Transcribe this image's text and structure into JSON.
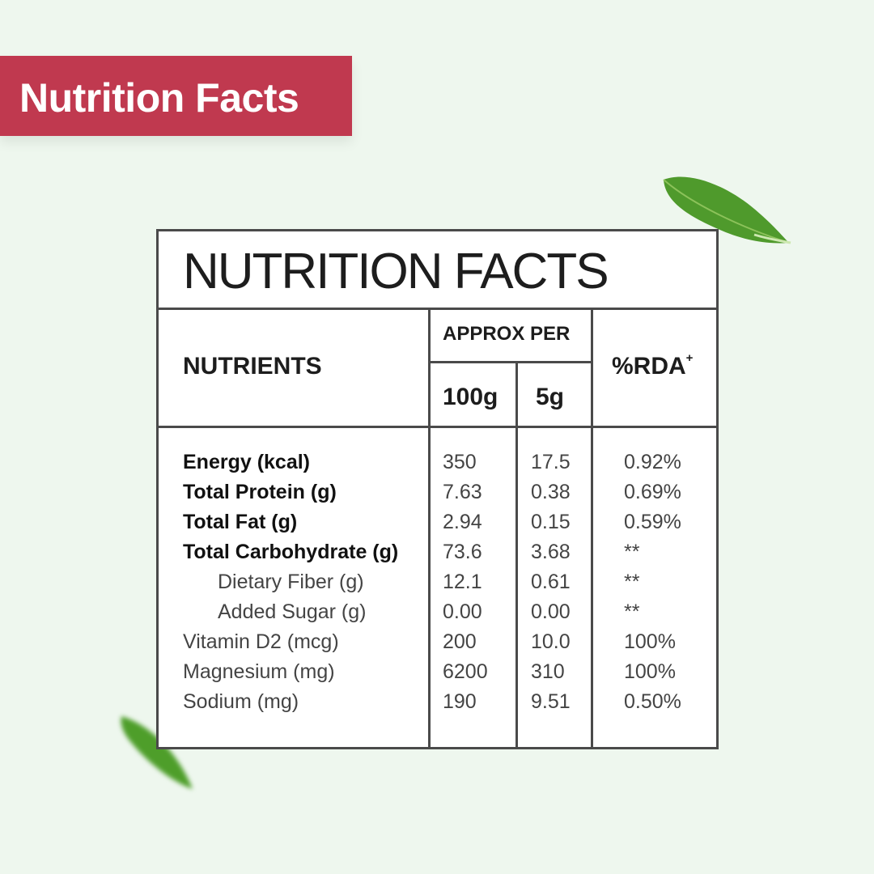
{
  "banner": {
    "title": "Nutrition Facts"
  },
  "table": {
    "title": "NUTRITION FACTS",
    "headers": {
      "nutrients": "NUTRIENTS",
      "approx_per": "APPROX PER",
      "per_100g": "100g",
      "per_5g": "5g",
      "rda": "%RDA",
      "rda_mark": "+"
    },
    "rows": [
      {
        "name": "Energy (kcal)",
        "per_100g": "350",
        "per_5g": "17.5",
        "rda": "0.92%"
      },
      {
        "name": "Total Protein (g)",
        "per_100g": "7.63",
        "per_5g": "0.38",
        "rda": "0.69%"
      },
      {
        "name": "Total Fat (g)",
        "per_100g": "2.94",
        "per_5g": "0.15",
        "rda": "0.59%"
      },
      {
        "name": "Total Carbohydrate (g)",
        "per_100g": "73.6",
        "per_5g": "3.68",
        "rda": "**"
      },
      {
        "name": "Dietary Fiber (g)",
        "per_100g": "12.1",
        "per_5g": "0.61",
        "rda": "**"
      },
      {
        "name": "Added Sugar (g)",
        "per_100g": "0.00",
        "per_5g": "0.00",
        "rda": "**"
      },
      {
        "name": "Vitamin D2 (mcg)",
        "per_100g": "200",
        "per_5g": "10.0",
        "rda": "100%"
      },
      {
        "name": "Magnesium (mg)",
        "per_100g": "6200",
        "per_5g": "310",
        "rda": "100%"
      },
      {
        "name": "Sodium (mg)",
        "per_100g": "190",
        "per_5g": "9.51",
        "rda": "0.50%"
      }
    ]
  },
  "decor": {
    "leaf_icon_top": "leaf-icon",
    "leaf_icon_bottom": "leaf-icon",
    "accent_color": "#c0394f"
  }
}
